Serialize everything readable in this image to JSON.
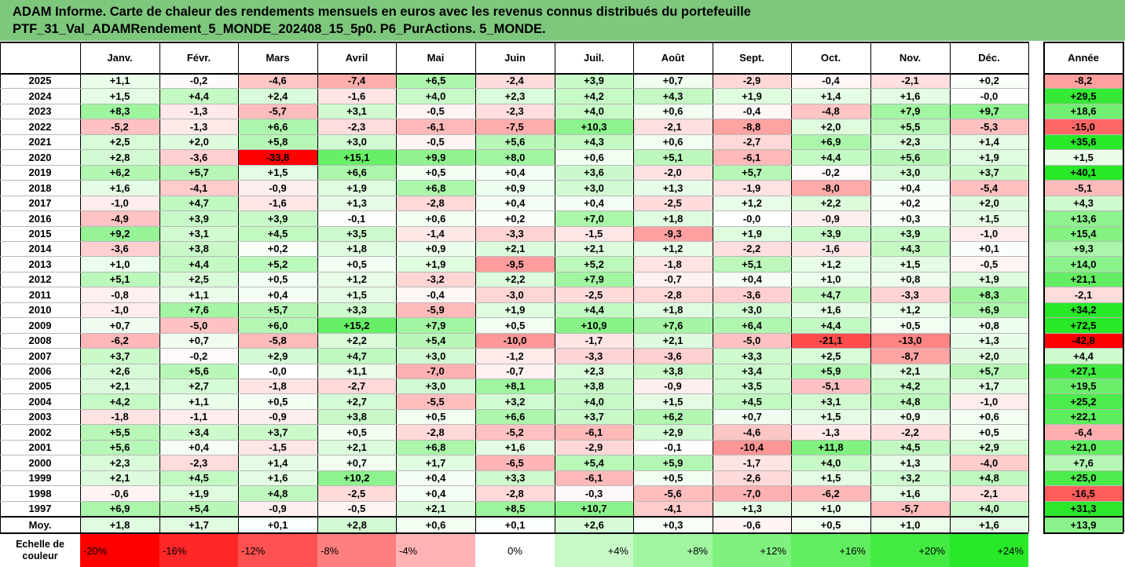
{
  "title": {
    "line1": "ADAM Informe. Carte de chaleur des rendements mensuels en euros avec les revenus connus distribués du portefeuille",
    "line2": "PTF_31_Val_ADAMRendement_5_MONDE_202408_15_5p0. P6_PurActions. 5_MONDE."
  },
  "chart_data": {
    "type": "heatmap",
    "columns": [
      "Janv.",
      "Févr.",
      "Mars",
      "Avril",
      "Mai",
      "Juin",
      "Juil.",
      "Août",
      "Sept.",
      "Oct.",
      "Nov.",
      "Déc."
    ],
    "annual_label": "Année",
    "rows": [
      {
        "year": "2025",
        "months": [
          "+1,1",
          "-0,2",
          "-4,6",
          "-7,4",
          "+6,5",
          "-2,4",
          "+3,9",
          "+0,7",
          "-2,9",
          "-0,4",
          "-2,1",
          "+0,2"
        ],
        "annual": "-8,2"
      },
      {
        "year": "2024",
        "months": [
          "+1,5",
          "+4,4",
          "+2,4",
          "-1,6",
          "+4,0",
          "+2,3",
          "+4,2",
          "+4,3",
          "+1,9",
          "+1,4",
          "+1,6",
          "-0,0"
        ],
        "annual": "+29,5"
      },
      {
        "year": "2023",
        "months": [
          "+8,3",
          "-1,3",
          "-5,7",
          "+3,1",
          "-0,5",
          "-2,3",
          "+4,0",
          "+0,6",
          "-0,4",
          "-4,8",
          "+7,9",
          "+9,7"
        ],
        "annual": "+18,6"
      },
      {
        "year": "2022",
        "months": [
          "-5,2",
          "-1,3",
          "+6,6",
          "-2,3",
          "-6,1",
          "-7,5",
          "+10,3",
          "-2,1",
          "-8,8",
          "+2,0",
          "+5,5",
          "-5,3"
        ],
        "annual": "-15,0"
      },
      {
        "year": "2021",
        "months": [
          "+2,5",
          "+2,0",
          "+5,8",
          "+3,0",
          "-0,5",
          "+5,6",
          "+4,3",
          "+0,6",
          "-2,7",
          "+6,9",
          "+2,3",
          "+1,4"
        ],
        "annual": "+35,6"
      },
      {
        "year": "2020",
        "months": [
          "+2,8",
          "-3,6",
          "-33,8",
          "+15,1",
          "+9,9",
          "+8,0",
          "+0,6",
          "+5,1",
          "-6,1",
          "+4,4",
          "+5,6",
          "+1,9"
        ],
        "annual": "+1,5"
      },
      {
        "year": "2019",
        "months": [
          "+6,2",
          "+5,7",
          "+1,5",
          "+6,6",
          "+0,5",
          "+0,4",
          "+3,6",
          "-2,0",
          "+5,7",
          "-0,2",
          "+3,0",
          "+3,7"
        ],
        "annual": "+40,1"
      },
      {
        "year": "2018",
        "months": [
          "+1,6",
          "-4,1",
          "-0,9",
          "+1,9",
          "+6,8",
          "+0,9",
          "+3,0",
          "+1,3",
          "-1,9",
          "-8,0",
          "+0,4",
          "-5,4"
        ],
        "annual": "-5,1"
      },
      {
        "year": "2017",
        "months": [
          "-1,0",
          "+4,7",
          "-1,6",
          "+1,3",
          "-2,8",
          "+0,4",
          "+0,4",
          "-2,5",
          "+1,2",
          "+2,2",
          "+0,2",
          "+2,0"
        ],
        "annual": "+4,3"
      },
      {
        "year": "2016",
        "months": [
          "-4,9",
          "+3,9",
          "+3,9",
          "-0,1",
          "+0,6",
          "+0,2",
          "+7,0",
          "+1,8",
          "-0,0",
          "-0,9",
          "+0,3",
          "+1,5"
        ],
        "annual": "+13,6"
      },
      {
        "year": "2015",
        "months": [
          "+9,2",
          "+3,1",
          "+4,5",
          "+3,5",
          "-1,4",
          "-3,3",
          "-1,5",
          "-9,3",
          "+1,9",
          "+3,9",
          "+3,9",
          "-1,0"
        ],
        "annual": "+15,4"
      },
      {
        "year": "2014",
        "months": [
          "-3,6",
          "+3,8",
          "+0,2",
          "+1,8",
          "+0,9",
          "+2,1",
          "+2,1",
          "+1,2",
          "-2,2",
          "-1,6",
          "+4,3",
          "+0,1"
        ],
        "annual": "+9,3"
      },
      {
        "year": "2013",
        "months": [
          "+1,0",
          "+4,4",
          "+5,2",
          "+0,5",
          "+1,9",
          "-9,5",
          "+5,2",
          "-1,8",
          "+5,1",
          "+1,2",
          "+1,5",
          "-0,5"
        ],
        "annual": "+14,0"
      },
      {
        "year": "2012",
        "months": [
          "+5,1",
          "+2,5",
          "+0,5",
          "+1,2",
          "-3,2",
          "+2,2",
          "+7,9",
          "-0,7",
          "+0,4",
          "+1,0",
          "+0,8",
          "+1,9"
        ],
        "annual": "+21,1"
      },
      {
        "year": "2011",
        "months": [
          "-0,8",
          "+1,1",
          "+0,4",
          "+1,5",
          "-0,4",
          "-3,0",
          "-2,5",
          "-2,8",
          "-3,6",
          "+4,7",
          "-3,3",
          "+8,3"
        ],
        "annual": "-2,1"
      },
      {
        "year": "2010",
        "months": [
          "-1,0",
          "+7,6",
          "+5,7",
          "+3,3",
          "-5,9",
          "+1,9",
          "+4,4",
          "+1,8",
          "+3,0",
          "+1,6",
          "+1,2",
          "+6,9"
        ],
        "annual": "+34,2"
      },
      {
        "year": "2009",
        "months": [
          "+0,7",
          "-5,0",
          "+6,0",
          "+15,2",
          "+7,9",
          "+0,5",
          "+10,9",
          "+7,6",
          "+6,4",
          "+4,4",
          "+0,5",
          "+0,8"
        ],
        "annual": "+72,5"
      },
      {
        "year": "2008",
        "months": [
          "-6,2",
          "+0,7",
          "-5,8",
          "+2,2",
          "+5,4",
          "-10,0",
          "-1,7",
          "+2,1",
          "-5,0",
          "-21,1",
          "-13,0",
          "+1,3"
        ],
        "annual": "-42,8"
      },
      {
        "year": "2007",
        "months": [
          "+3,7",
          "-0,2",
          "+2,9",
          "+4,7",
          "+3,0",
          "-1,2",
          "-3,3",
          "-3,6",
          "+3,3",
          "+2,5",
          "-8,7",
          "+2,0"
        ],
        "annual": "+4,4"
      },
      {
        "year": "2006",
        "months": [
          "+2,6",
          "+5,6",
          "-0,0",
          "+1,1",
          "-7,0",
          "-0,7",
          "+2,3",
          "+3,8",
          "+3,4",
          "+5,9",
          "+2,1",
          "+5,7"
        ],
        "annual": "+27,1"
      },
      {
        "year": "2005",
        "months": [
          "+2,1",
          "+2,7",
          "-1,8",
          "-2,7",
          "+3,0",
          "+8,1",
          "+3,8",
          "-0,9",
          "+3,5",
          "-5,1",
          "+4,2",
          "+1,7"
        ],
        "annual": "+19,5"
      },
      {
        "year": "2004",
        "months": [
          "+4,2",
          "+1,1",
          "+0,5",
          "+2,7",
          "-5,5",
          "+3,2",
          "+4,0",
          "+1,5",
          "+4,5",
          "+3,1",
          "+4,8",
          "-1,0"
        ],
        "annual": "+25,2"
      },
      {
        "year": "2003",
        "months": [
          "-1,8",
          "-1,1",
          "-0,9",
          "+3,8",
          "+0,5",
          "+6,6",
          "+3,7",
          "+6,2",
          "+0,7",
          "+1,5",
          "+0,9",
          "+0,6"
        ],
        "annual": "+22,1"
      },
      {
        "year": "2002",
        "months": [
          "+5,5",
          "+3,4",
          "+3,7",
          "+0,5",
          "-2,8",
          "-5,2",
          "-6,1",
          "+2,9",
          "-4,6",
          "-1,3",
          "-2,2",
          "+0,5"
        ],
        "annual": "-6,4"
      },
      {
        "year": "2001",
        "months": [
          "+5,6",
          "+0,4",
          "-1,5",
          "+2,1",
          "+6,8",
          "+1,6",
          "-2,9",
          "-0,1",
          "-10,4",
          "+11,8",
          "+4,5",
          "+2,9"
        ],
        "annual": "+21,0"
      },
      {
        "year": "2000",
        "months": [
          "+2,3",
          "-2,3",
          "+1,4",
          "+0,7",
          "+1,7",
          "-6,5",
          "+5,4",
          "+5,9",
          "-1,7",
          "+4,0",
          "+1,3",
          "-4,0"
        ],
        "annual": "+7,6"
      },
      {
        "year": "1999",
        "months": [
          "+2,1",
          "+4,5",
          "+1,6",
          "+10,2",
          "+0,4",
          "+3,3",
          "-6,1",
          "+0,5",
          "-2,6",
          "+1,5",
          "+3,2",
          "+4,8"
        ],
        "annual": "+25,0"
      },
      {
        "year": "1998",
        "months": [
          "-0,6",
          "+1,9",
          "+4,8",
          "-2,5",
          "+0,4",
          "-2,8",
          "-0,3",
          "-5,6",
          "-7,0",
          "-6,2",
          "+1,6",
          "-2,1"
        ],
        "annual": "-16,5"
      },
      {
        "year": "1997",
        "months": [
          "+6,9",
          "+5,4",
          "-0,9",
          "-0,5",
          "+2,1",
          "+8,5",
          "+10,7",
          "-4,1",
          "+1,3",
          "+1,0",
          "-5,7",
          "+4,0"
        ],
        "annual": "+31,3"
      }
    ],
    "average": {
      "label": "Moy.",
      "months": [
        "+1,8",
        "+1,7",
        "+0,1",
        "+2,8",
        "+0,6",
        "+0,1",
        "+2,6",
        "+0,3",
        "-0,6",
        "+0,5",
        "+1,0",
        "+1,6"
      ],
      "annual": "+13,9"
    },
    "scale": {
      "label": "Echelle de couleur",
      "stops": [
        "-20%",
        "-16%",
        "-12%",
        "-8%",
        "-4%",
        "0%",
        "+4%",
        "+8%",
        "+12%",
        "+16%",
        "+20%",
        "+24%"
      ],
      "values": [
        -20,
        -16,
        -12,
        -8,
        -4,
        0,
        4,
        8,
        12,
        16,
        20,
        24
      ]
    },
    "colors": {
      "negative_max": "#ff0000",
      "positive_max": "#00ee00",
      "neutral": "#ffffff",
      "title_band": "#7ec87e"
    }
  }
}
